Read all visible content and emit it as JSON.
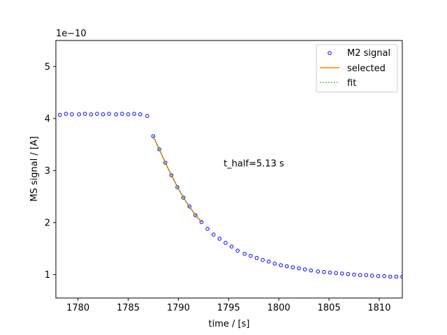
{
  "chart_data": {
    "type": "scatter",
    "xlabel": "time / [s]",
    "ylabel": "MS signal / [A]",
    "offset_label": "1e−10",
    "xlim": [
      1777.8,
      1812.3
    ],
    "ylim": [
      0.55,
      5.5
    ],
    "x_ticks": [
      1780,
      1785,
      1790,
      1795,
      1800,
      1805,
      1810
    ],
    "y_ticks": [
      1,
      2,
      3,
      4,
      5
    ],
    "grid": false,
    "legend_position": "top-right",
    "annotation": {
      "text": "t_half=5.13 s",
      "x": 1794.5,
      "y": 3.08
    },
    "colors": {
      "signal": "#0000ff",
      "selected": "#ff7f0e",
      "fit": "#2ca02c"
    },
    "series": [
      {
        "name": "M2 signal",
        "style": "open-circle-markers",
        "x": [
          1778.2,
          1778.8,
          1779.4,
          1780.1,
          1780.7,
          1781.3,
          1781.9,
          1782.5,
          1783.1,
          1783.8,
          1784.4,
          1785.0,
          1785.6,
          1786.2,
          1786.9,
          1787.5,
          1788.1,
          1788.7,
          1789.3,
          1789.9,
          1790.5,
          1791.1,
          1791.7,
          1792.3,
          1792.9,
          1793.5,
          1794.1,
          1794.7,
          1795.3,
          1795.9,
          1796.6,
          1797.2,
          1797.8,
          1798.4,
          1799.0,
          1799.6,
          1800.2,
          1800.8,
          1801.4,
          1802.0,
          1802.6,
          1803.2,
          1803.9,
          1804.5,
          1805.1,
          1805.7,
          1806.3,
          1806.9,
          1807.5,
          1808.1,
          1808.7,
          1809.3,
          1809.9,
          1810.5,
          1811.1,
          1811.7,
          1812.3
        ],
        "y": [
          4.07,
          4.09,
          4.08,
          4.08,
          4.09,
          4.08,
          4.09,
          4.08,
          4.09,
          4.08,
          4.09,
          4.08,
          4.09,
          4.08,
          4.05,
          3.66,
          3.41,
          3.15,
          2.91,
          2.68,
          2.48,
          2.31,
          2.14,
          2.01,
          1.88,
          1.77,
          1.69,
          1.61,
          1.54,
          1.46,
          1.4,
          1.36,
          1.32,
          1.28,
          1.25,
          1.21,
          1.18,
          1.16,
          1.14,
          1.12,
          1.1,
          1.08,
          1.06,
          1.05,
          1.04,
          1.03,
          1.02,
          1.01,
          1.0,
          0.99,
          0.99,
          0.98,
          0.97,
          0.97,
          0.96,
          0.96,
          0.96
        ]
      },
      {
        "name": "selected",
        "style": "solid-line",
        "x": [
          1787.5,
          1788.1,
          1788.7,
          1789.3,
          1789.9,
          1790.5,
          1791.1,
          1791.7,
          1792.3
        ],
        "y": [
          3.66,
          3.41,
          3.15,
          2.91,
          2.68,
          2.48,
          2.31,
          2.14,
          2.01
        ]
      },
      {
        "name": "fit",
        "style": "dotted-line",
        "x": [
          1787.5,
          1788.1,
          1788.7,
          1789.3,
          1789.9,
          1790.5,
          1791.1,
          1791.7,
          1792.3
        ],
        "y": [
          3.66,
          3.4,
          3.15,
          2.92,
          2.69,
          2.48,
          2.3,
          2.15,
          2.02
        ]
      }
    ]
  }
}
